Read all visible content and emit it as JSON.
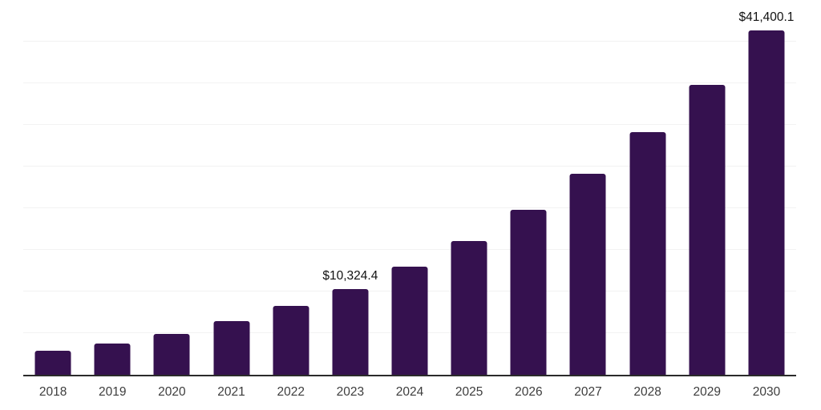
{
  "chart_data": {
    "type": "bar",
    "title": "",
    "xlabel": "",
    "ylabel": "",
    "categories": [
      "2018",
      "2019",
      "2020",
      "2021",
      "2022",
      "2023",
      "2024",
      "2025",
      "2026",
      "2027",
      "2028",
      "2029",
      "2030"
    ],
    "values": [
      2890,
      3755,
      4900,
      6450,
      8250,
      10324.4,
      13000,
      16100,
      19800,
      24100,
      29100,
      34850,
      41400.1
    ],
    "data_labels": [
      null,
      null,
      null,
      null,
      null,
      "$10,324.4",
      null,
      null,
      null,
      null,
      null,
      null,
      "$41,400.1"
    ],
    "ylim": [
      0,
      45200
    ],
    "grid_step": 5000,
    "grid": true,
    "legend": false,
    "y_axis_tick_labels": [],
    "colors": {
      "bar": "#35114F",
      "gridline": "#f2f2f2",
      "axis_line": "#2b2b2b",
      "x_tick_label": "#3d3d3d",
      "data_label": "#111111",
      "background": "#ffffff"
    }
  }
}
